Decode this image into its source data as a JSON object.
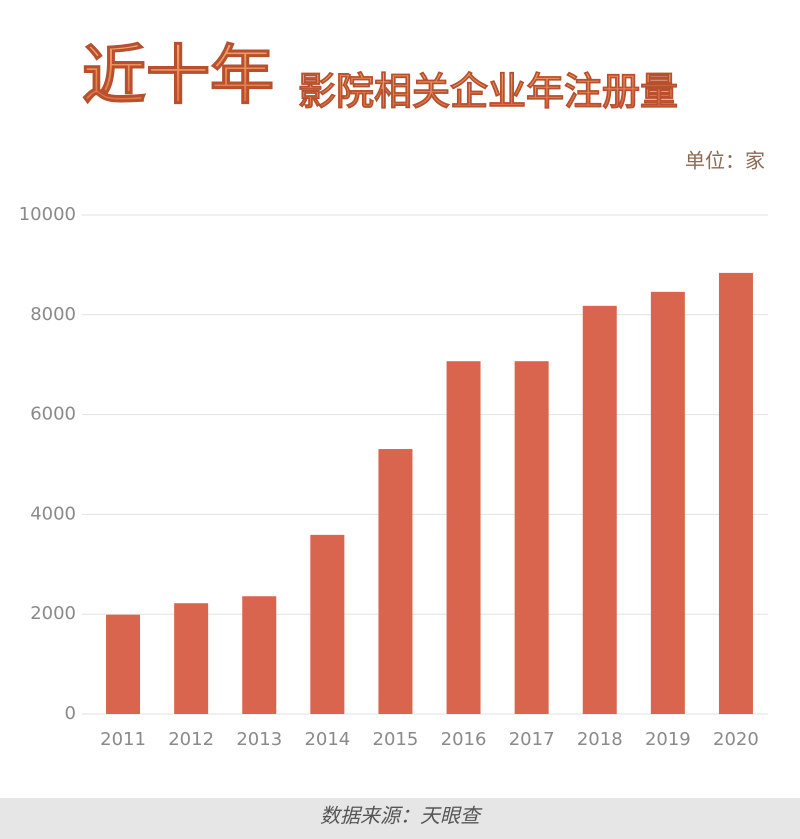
{
  "chart_data": {
    "type": "bar",
    "title_parts": [
      "近十年",
      "影院相关企业年注册量"
    ],
    "unit": "单位：家",
    "source": "数据来源：天眼查",
    "categories": [
      "2011",
      "2012",
      "2013",
      "2014",
      "2015",
      "2016",
      "2017",
      "2018",
      "2019",
      "2020"
    ],
    "values": [
      1990,
      2220,
      2360,
      3590,
      5310,
      7070,
      7070,
      8180,
      8460,
      8840
    ],
    "color": "#d9654e",
    "ylim": [
      0,
      10000
    ],
    "yticks": [
      0,
      2000,
      4000,
      6000,
      8000,
      10000
    ],
    "grid": true
  }
}
